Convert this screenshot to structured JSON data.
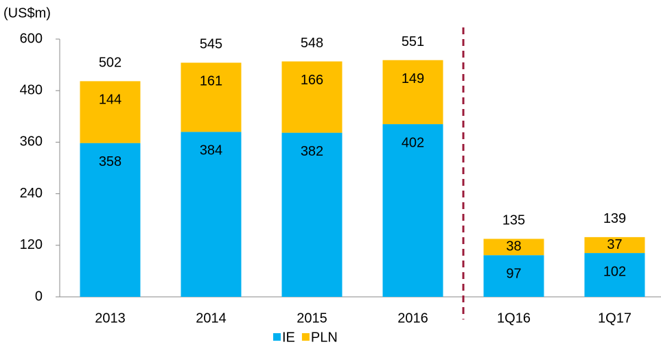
{
  "chart_data": {
    "type": "stacked_bar",
    "unit_label": "(US$m)",
    "categories": [
      "2013",
      "2014",
      "2015",
      "2016",
      "1Q16",
      "1Q17"
    ],
    "series": [
      {
        "name": "IE",
        "color": "#00b0f0",
        "values": [
          358,
          384,
          382,
          402,
          97,
          102
        ]
      },
      {
        "name": "PLN",
        "color": "#ffc000",
        "values": [
          144,
          161,
          166,
          149,
          38,
          37
        ]
      }
    ],
    "total_labels": [
      502,
      545,
      548,
      551,
      135,
      139
    ],
    "ylim": [
      0,
      600
    ],
    "yticks": [
      0,
      120,
      240,
      360,
      480,
      600
    ],
    "divider_color": "#9b1b3a",
    "legend": "bottom"
  }
}
